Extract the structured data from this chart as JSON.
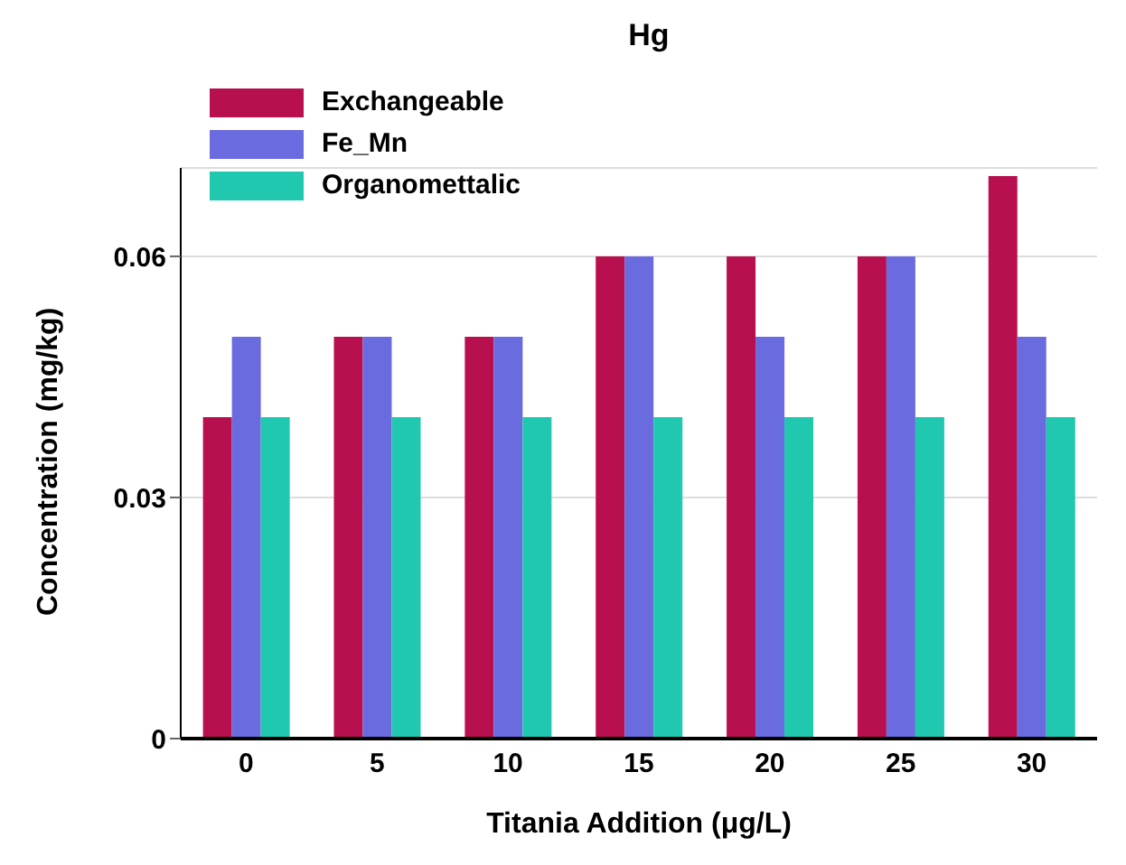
{
  "chart_data": {
    "type": "bar",
    "title": "Hg",
    "xlabel": "Titania Addition (μg/L)",
    "ylabel": "Concentration (mg/kg)",
    "categories": [
      "0",
      "5",
      "10",
      "15",
      "20",
      "25",
      "30"
    ],
    "series": [
      {
        "name": "Exchangeable",
        "color": "#b8104e",
        "values": [
          0.04,
          0.05,
          0.05,
          0.06,
          0.06,
          0.06,
          0.07
        ]
      },
      {
        "name": "Fe_Mn",
        "color": "#6b6be0",
        "values": [
          0.05,
          0.05,
          0.05,
          0.06,
          0.05,
          0.06,
          0.05
        ]
      },
      {
        "name": "Organomettalic",
        "color": "#20c8b0",
        "values": [
          0.04,
          0.04,
          0.04,
          0.04,
          0.04,
          0.04,
          0.04
        ]
      }
    ],
    "ylim": [
      0,
      0.071
    ],
    "yticks": [
      0,
      0.03,
      0.06
    ],
    "grid": "y",
    "legend": "top left"
  }
}
